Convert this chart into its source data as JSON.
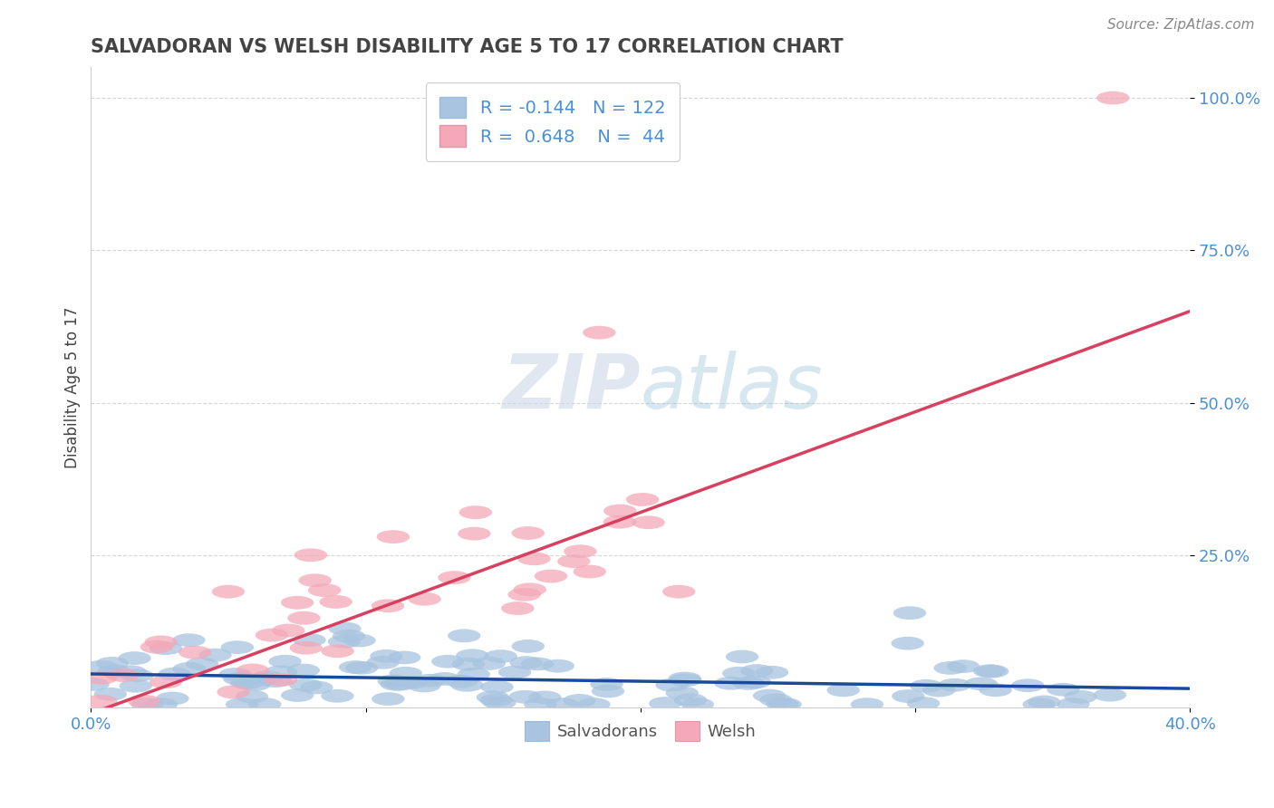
{
  "title": "SALVADORAN VS WELSH DISABILITY AGE 5 TO 17 CORRELATION CHART",
  "source": "Source: ZipAtlas.com",
  "ylabel": "Disability Age 5 to 17",
  "xlim": [
    0.0,
    0.4
  ],
  "ylim": [
    0.0,
    1.05
  ],
  "xticks": [
    0.0,
    0.1,
    0.2,
    0.3,
    0.4
  ],
  "xticklabels": [
    "0.0%",
    "",
    "",
    "",
    "40.0%"
  ],
  "yticks": [
    0.25,
    0.5,
    0.75,
    1.0
  ],
  "yticklabels": [
    "25.0%",
    "50.0%",
    "75.0%",
    "100.0%"
  ],
  "salvadoran_color": "#a8c4e0",
  "welsh_color": "#f4a8b8",
  "salvadoran_line_color": "#1a4a9a",
  "welsh_line_color": "#d84060",
  "background_color": "#ffffff",
  "R_salvadoran": -0.144,
  "N_salvadoran": 122,
  "R_welsh": 0.648,
  "N_welsh": 44,
  "title_color": "#444444",
  "axis_color": "#4a90d9",
  "watermark_color": "#cdd8e8",
  "grid_color": "#cccccc"
}
